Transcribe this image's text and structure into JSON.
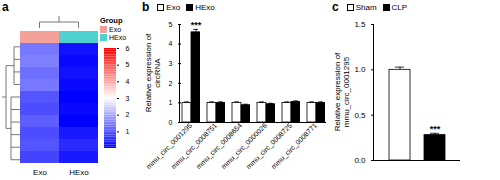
{
  "chart_data": [
    {
      "type": "heatmap",
      "title": "a",
      "categories": [
        "Exo",
        "HExo"
      ],
      "colors": [
        "#f4a09a",
        "#4fd0d3"
      ],
      "legend_title": "Group",
      "cells": [
        [
          1.4,
          0.2
        ],
        [
          1.5,
          0.1
        ],
        [
          1.3,
          0.2
        ],
        [
          1.4,
          0.1
        ],
        [
          1.0,
          0.0
        ],
        [
          0.9,
          0.1
        ],
        [
          1.1,
          0.0
        ],
        [
          0.9,
          0.3
        ],
        [
          1.0,
          0.5
        ],
        [
          0.8,
          0.3
        ]
      ],
      "colorbar_range": [
        0,
        6
      ],
      "colorbar_ticks": [
        1,
        2,
        3,
        4,
        5,
        6
      ],
      "tick_labels": "x"
    },
    {
      "type": "bar",
      "title": "b",
      "categories": [
        "mmu_circ_0001295",
        "mmu_circ_0008751",
        "mmu_circ_0008654",
        "mmu_circ_0000026",
        "mmu_circ_0008725",
        "mmu_circ_0008771"
      ],
      "series": [
        {
          "name": "Exo",
          "color": "#ffffff",
          "values": [
            1,
            1,
            1,
            1,
            1,
            1
          ],
          "errors": [
            0.05,
            0.05,
            0.05,
            0.05,
            0.05,
            0.05
          ]
        },
        {
          "name": "HExo",
          "color": "#000000",
          "values": [
            4.6,
            1.0,
            0.88,
            0.93,
            1.05,
            1.0
          ],
          "errors": [
            0.15,
            0.05,
            0.05,
            0.05,
            0.05,
            0.05
          ]
        }
      ],
      "ylabel": "Relative expression of circRNA",
      "ylim": [
        0,
        5
      ],
      "yticks": [
        0,
        1,
        2,
        3,
        4,
        5
      ],
      "annotations": [
        {
          "text": "***",
          "category": "mmu_circ_0001295",
          "series": "HExo"
        }
      ],
      "legend": "top",
      "tick_labels": true
    },
    {
      "type": "bar",
      "title": "c",
      "categories": [
        "Sham",
        "CLP"
      ],
      "colors": [
        "#ffffff",
        "#000000"
      ],
      "values": [
        1.0,
        0.28
      ],
      "errors": [
        0.03,
        0.02
      ],
      "ylabel": "Relative expression of mmu_circ_0001295",
      "ylim": [
        0,
        1.5
      ],
      "yticks": [
        {
          "value": 0,
          "label": "0.0"
        },
        0.5,
        {
          "value": 1,
          "label": "1.0"
        },
        1.5
      ],
      "annotations": [
        {
          "text": "***",
          "category": "CLP"
        }
      ],
      "legend": "top",
      "tick_labels": "y"
    }
  ]
}
